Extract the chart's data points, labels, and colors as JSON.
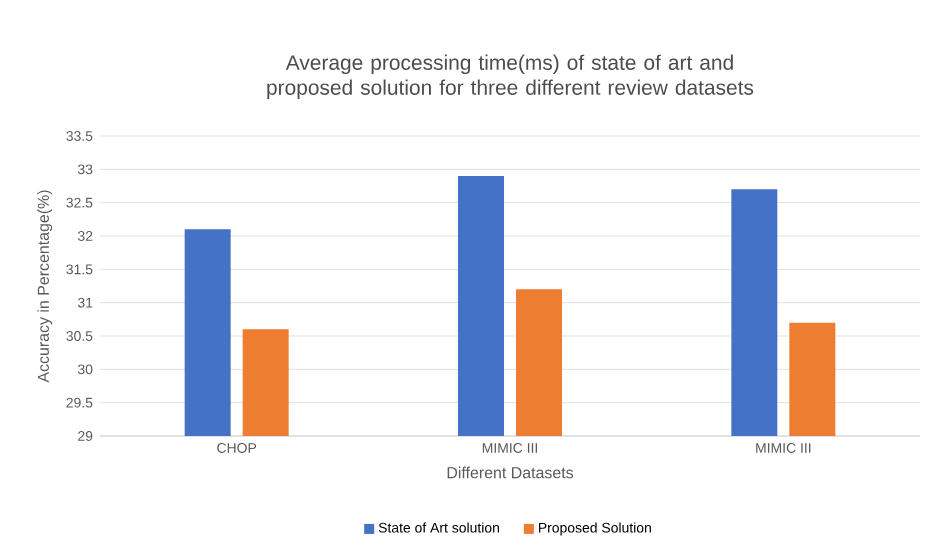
{
  "chart_data": {
    "type": "bar",
    "title": "Average processing time(ms) of state of art and proposed solution for three different review datasets",
    "xlabel": "Different Datasets",
    "ylabel": "Accuracy in Percentage(%)",
    "categories": [
      "CHOP",
      "MIMIC III",
      "MIMIC III"
    ],
    "series": [
      {
        "name": "State of Art solution",
        "color": "#4472c4",
        "values": [
          32.1,
          32.9,
          32.7
        ]
      },
      {
        "name": "Proposed Solution",
        "color": "#ed7d31",
        "values": [
          30.6,
          31.2,
          30.7
        ]
      }
    ],
    "ylim": [
      29,
      33.5
    ],
    "yticks": [
      29,
      29.5,
      30,
      30.5,
      31,
      31.5,
      32,
      32.5,
      33,
      33.5
    ],
    "grid": "y",
    "legend": "bottom"
  }
}
